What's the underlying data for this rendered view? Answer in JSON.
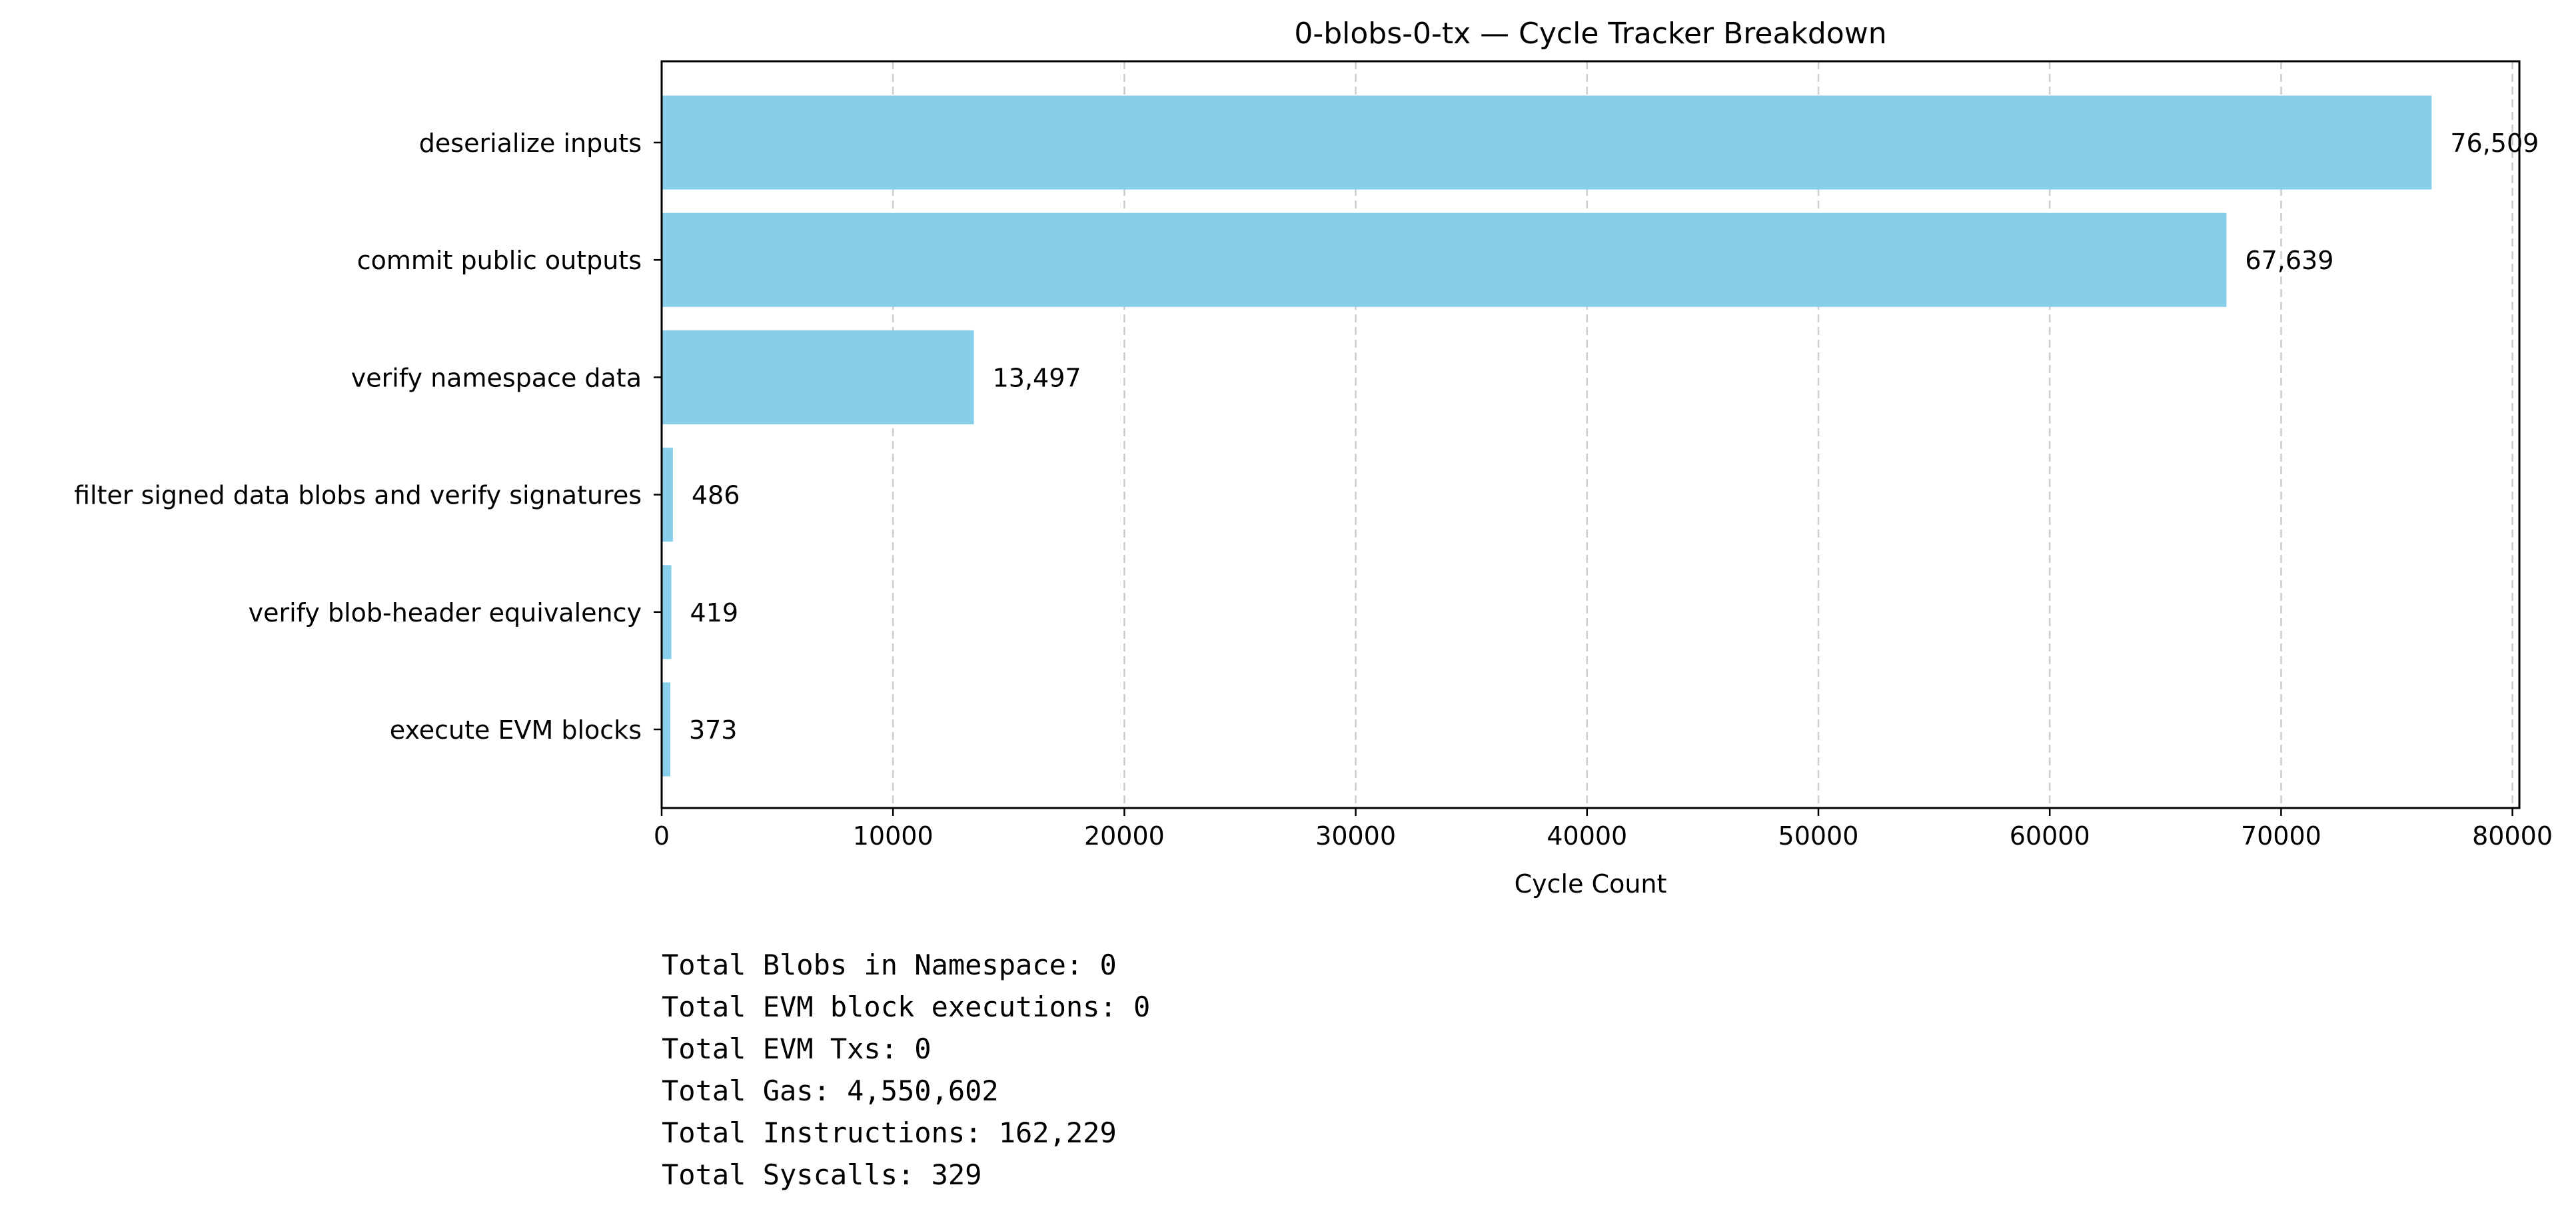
{
  "chart_data": {
    "type": "bar",
    "orientation": "horizontal",
    "title": "0-blobs-0-tx — Cycle Tracker Breakdown",
    "xlabel": "Cycle Count",
    "ylabel": "",
    "categories": [
      "deserialize inputs",
      "commit public outputs",
      "verify namespace data",
      "filter signed data blobs and verify signatures",
      "verify blob-header equivalency",
      "execute EVM blocks"
    ],
    "values": [
      76509,
      67639,
      13497,
      486,
      419,
      373
    ],
    "value_labels": [
      "76,509",
      "67,639",
      "13,497",
      "486",
      "419",
      "373"
    ],
    "xlim": [
      0,
      80300
    ],
    "xticks": [
      0,
      10000,
      20000,
      30000,
      40000,
      50000,
      60000,
      70000,
      80000
    ],
    "xtick_labels": [
      "0",
      "10000",
      "20000",
      "30000",
      "40000",
      "50000",
      "60000",
      "70000",
      "80000"
    ],
    "grid": "x-axis dashed",
    "bar_color": "#87ceeb",
    "grid_color": "#cccccc",
    "legend": "none"
  },
  "summary": {
    "lines": [
      "Total Blobs in Namespace: 0",
      "Total EVM block executions: 0",
      "Total EVM Txs: 0",
      "Total Gas: 4,550,602",
      "Total Instructions: 162,229",
      "Total Syscalls: 329"
    ]
  }
}
